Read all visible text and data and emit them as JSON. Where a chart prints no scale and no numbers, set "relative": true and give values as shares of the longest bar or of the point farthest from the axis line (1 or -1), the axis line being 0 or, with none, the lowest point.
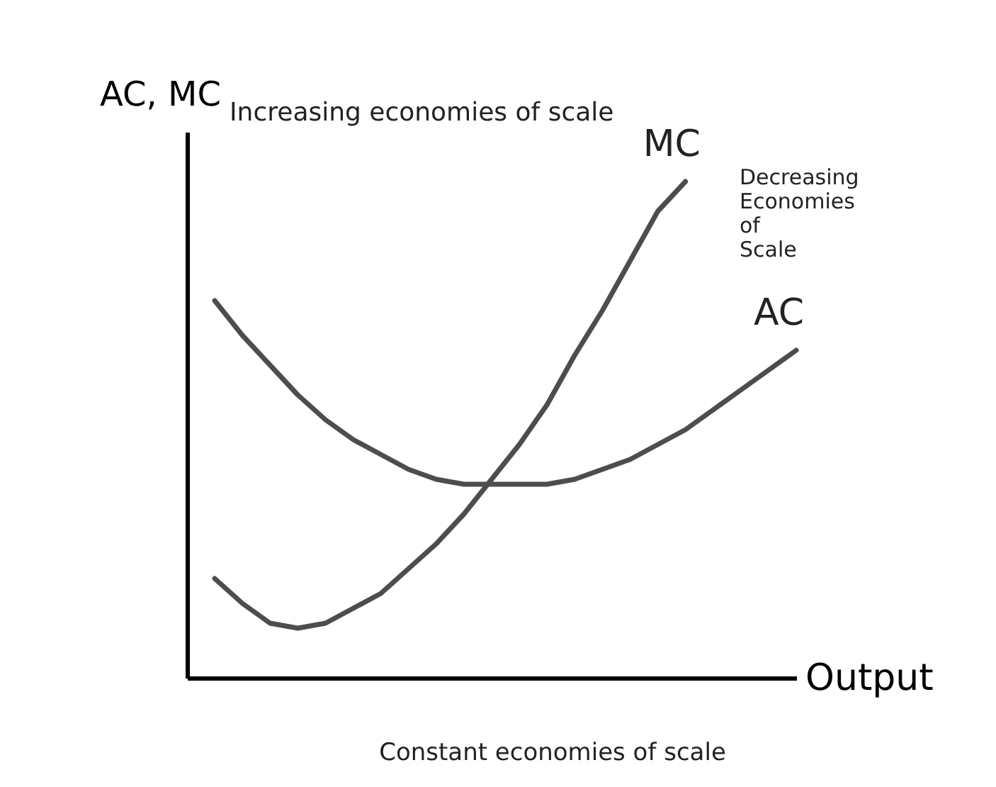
{
  "chart_data": {
    "type": "line",
    "relative": true,
    "xlabel": "Output",
    "ylabel": "AC, MC",
    "legend": false,
    "grid": false,
    "tick_labels": false,
    "marker": "none",
    "line_style": "solid",
    "categories": [
      null,
      null,
      null,
      null,
      null,
      null,
      null,
      null,
      null,
      null,
      null,
      null,
      null,
      null,
      null,
      null,
      null,
      null,
      null,
      null,
      null,
      null,
      null
    ],
    "series": [
      {
        "name": "MC",
        "color": "#4d4d4d",
        "values": [
          null,
          0.2,
          0.15,
          0.11,
          0.1,
          0.11,
          0.14,
          0.17,
          0.22,
          0.27,
          0.33,
          0.4,
          0.47,
          0.55,
          0.65,
          0.74,
          0.84,
          0.94,
          1,
          null,
          null,
          null,
          null
        ]
      },
      {
        "name": "AC",
        "color": "#4d4d4d",
        "values": [
          null,
          0.76,
          0.69,
          0.63,
          0.57,
          0.52,
          0.48,
          0.45,
          0.42,
          0.4,
          0.39,
          0.39,
          0.39,
          0.39,
          0.4,
          0.42,
          0.44,
          0.47,
          0.5,
          0.54,
          0.58,
          0.62,
          0.66
        ]
      }
    ],
    "annotations": [
      "Increasing economies of scale",
      "Decreasing Economies of Scale",
      "Constant economies of scale"
    ]
  }
}
